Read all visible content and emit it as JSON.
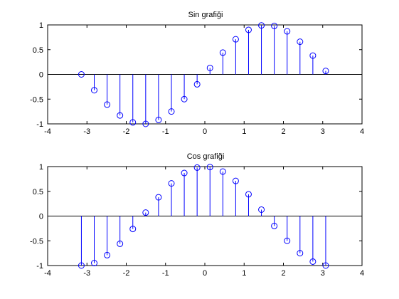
{
  "colors": {
    "stem": "#0000ff",
    "axes": "#000000",
    "background": "#ffffff"
  },
  "chart_data": [
    {
      "type": "stem",
      "title": "Sin grafiği",
      "xlabel": "",
      "ylabel": "",
      "xlim": [
        -4,
        4
      ],
      "ylim": [
        -1,
        1
      ],
      "grid": false,
      "x_ticks": [
        "-4",
        "-3",
        "-2",
        "-1",
        "0",
        "1",
        "2",
        "3",
        "4"
      ],
      "y_ticks": [
        "-1",
        "-0.5",
        "0",
        "0.5",
        "1"
      ],
      "x": [
        -3.1416,
        -2.8143,
        -2.4871,
        -2.1598,
        -1.8326,
        -1.5053,
        -1.1781,
        -0.8508,
        -0.5236,
        -0.1963,
        0.1309,
        0.4581,
        0.7854,
        1.1126,
        1.4399,
        1.7671,
        2.0944,
        2.4216,
        2.7489,
        3.0761
      ],
      "values": [
        0.0,
        -0.32,
        -0.61,
        -0.83,
        -0.97,
        -1.0,
        -0.92,
        -0.75,
        -0.5,
        -0.2,
        0.13,
        0.44,
        0.71,
        0.9,
        0.99,
        0.98,
        0.87,
        0.66,
        0.38,
        0.07
      ]
    },
    {
      "type": "stem",
      "title": "Cos grafiği",
      "xlabel": "",
      "ylabel": "",
      "xlim": [
        -4,
        4
      ],
      "ylim": [
        -1,
        1
      ],
      "grid": false,
      "x_ticks": [
        "-4",
        "-3",
        "-2",
        "-1",
        "0",
        "1",
        "2",
        "3",
        "4"
      ],
      "y_ticks": [
        "-1",
        "-0.5",
        "0",
        "0.5",
        "1"
      ],
      "x": [
        -3.1416,
        -2.8143,
        -2.4871,
        -2.1598,
        -1.8326,
        -1.5053,
        -1.1781,
        -0.8508,
        -0.5236,
        -0.1963,
        0.1309,
        0.4581,
        0.7854,
        1.1126,
        1.4399,
        1.7671,
        2.0944,
        2.4216,
        2.7489,
        3.0761
      ],
      "values": [
        -1.0,
        -0.95,
        -0.79,
        -0.56,
        -0.26,
        0.07,
        0.38,
        0.66,
        0.87,
        0.98,
        0.99,
        0.9,
        0.71,
        0.44,
        0.13,
        -0.2,
        -0.5,
        -0.75,
        -0.92,
        -1.0
      ]
    }
  ]
}
